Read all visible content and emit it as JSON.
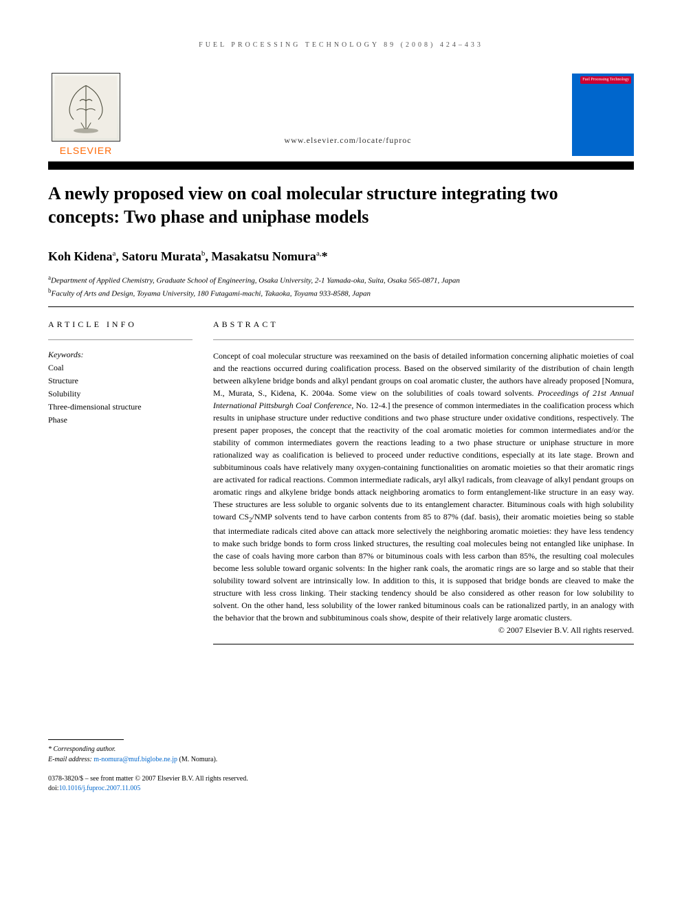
{
  "running_header": "FUEL PROCESSING TECHNOLOGY 89 (2008) 424–433",
  "site_url": "www.elsevier.com/locate/fuproc",
  "publisher_name": "ELSEVIER",
  "journal_cover_label": "Fuel Processing Technology",
  "title": "A newly proposed view on coal molecular structure integrating two concepts: Two phase and uniphase models",
  "authors_html": "Koh Kidena<sup>a</sup>, Satoru Murata<sup>b</sup>, Masakatsu Nomura<sup>a,</sup>*",
  "affiliations": {
    "a": "Department of Applied Chemistry, Graduate School of Engineering, Osaka University, 2-1 Yamada-oka, Suita, Osaka 565-0871, Japan",
    "b": "Faculty of Arts and Design, Toyama University, 180 Futagami-machi, Takaoka, Toyama 933-8588, Japan"
  },
  "article_info_header": "ARTICLE INFO",
  "abstract_header": "ABSTRACT",
  "keywords_label": "Keywords:",
  "keywords": [
    "Coal",
    "Structure",
    "Solubility",
    "Three-dimensional structure",
    "Phase"
  ],
  "abstract_pre_italic": "Concept of coal molecular structure was reexamined on the basis of detailed information concerning aliphatic moieties of coal and the reactions occurred during coalification process. Based on the observed similarity of the distribution of chain length between alkylene bridge bonds and alkyl pendant groups on coal aromatic cluster, the authors have already proposed [Nomura, M., Murata, S., Kidena, K. 2004a. Some view on the solubilities of coals toward solvents. ",
  "abstract_italic": "Proceedings of 21st Annual International Pittsburgh Coal Conference",
  "abstract_post_italic_1": ", No. 12-4.] the presence of common intermediates in the coalification process which results in uniphase structure under reductive conditions and two phase structure under oxidative conditions, respectively. The present paper proposes, the concept that the reactivity of the coal aromatic moieties for common intermediates and/or the stability of common intermediates govern the reactions leading to a two phase structure or uniphase structure in more rationalized way as coalification is believed to proceed under reductive conditions, especially at its late stage. Brown and subbituminous coals have relatively many oxygen-containing functionalities on aromatic moieties so that their aromatic rings are activated for radical reactions. Common intermediate radicals, aryl alkyl radicals, from cleavage of alkyl pendant groups on aromatic rings and alkylene bridge bonds attack neighboring aromatics to form entanglement-like structure in an easy way. These structures are less soluble to organic solvents due to its entanglement character. Bituminous coals with high solubility toward CS",
  "abstract_sub": "2",
  "abstract_post_italic_2": "/NMP solvents tend to have carbon contents from 85 to 87% (daf. basis), their aromatic moieties being so stable that intermediate radicals cited above can attack more selectively the neighboring aromatic moieties: they have less tendency to make such bridge bonds to form cross linked structures, the resulting coal molecules being not entangled like uniphase. In the case of coals having more carbon than 87% or bituminous coals with less carbon than 85%, the resulting coal molecules become less soluble toward organic solvents: In the higher rank coals, the aromatic rings are so large and so stable that their solubility toward solvent are intrinsically low. In addition to this, it is supposed that bridge bonds are cleaved to make the structure with less cross linking. Their stacking tendency should be also considered as other reason for low solubility to solvent. On the other hand, less solubility of the lower ranked bituminous coals can be rationalized partly, in an analogy with the behavior that the brown and subbituminous coals show, despite of their relatively large aromatic clusters.",
  "copyright": "© 2007 Elsevier B.V. All rights reserved.",
  "corresponding_label": "* Corresponding author.",
  "email_label": "E-mail address:",
  "email": "m-nomura@muf.biglobe.ne.jp",
  "email_suffix": "(M. Nomura).",
  "front_matter_line": "0378-3820/$ – see front matter © 2007 Elsevier B.V. All rights reserved.",
  "doi_label": "doi:",
  "doi": "10.1016/j.fuproc.2007.11.005",
  "colors": {
    "elsevier_orange": "#ff6600",
    "link_blue": "#0066cc",
    "cover_blue": "#0066cc",
    "badge_red": "#cc0033",
    "text": "#000000",
    "background": "#ffffff"
  }
}
